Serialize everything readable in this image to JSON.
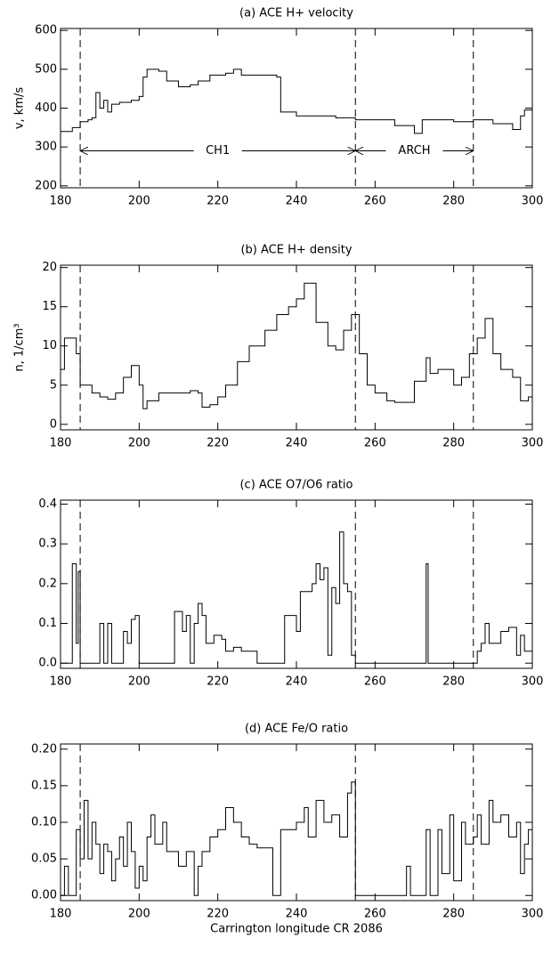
{
  "chart_data": [
    {
      "type": "line",
      "step": true,
      "title": "(a)    ACE H+ velocity",
      "y_label": "v, km/s",
      "xlim": [
        180,
        300
      ],
      "xticks": [
        180,
        200,
        220,
        240,
        260,
        280,
        300
      ],
      "ylim": [
        195,
        605
      ],
      "yticks": [
        200,
        300,
        400,
        500,
        600
      ],
      "dashed_lines": [
        185,
        255,
        285
      ],
      "annotations": [
        {
          "label": "CH1",
          "x_start": 185,
          "x_end": 255,
          "y": 290
        },
        {
          "label": "ARCH",
          "x_start": 255,
          "x_end": 285,
          "y": 290
        }
      ],
      "x": [
        180,
        183,
        185,
        187,
        188,
        189,
        190,
        191,
        192,
        193,
        195,
        198,
        200,
        201,
        202,
        205,
        207,
        210,
        213,
        215,
        218,
        222,
        224,
        226,
        235,
        236,
        240,
        250,
        255,
        260,
        265,
        270,
        272,
        275,
        280,
        285,
        290,
        295,
        297,
        298,
        300
      ],
      "series": [
        {
          "name": "H+ velocity",
          "color": "#000000",
          "values": [
            340,
            350,
            365,
            370,
            375,
            440,
            400,
            420,
            390,
            410,
            415,
            420,
            430,
            480,
            500,
            495,
            470,
            455,
            460,
            470,
            485,
            490,
            500,
            485,
            480,
            390,
            380,
            375,
            370,
            370,
            355,
            335,
            370,
            370,
            365,
            370,
            360,
            345,
            380,
            395,
            400
          ]
        }
      ]
    },
    {
      "type": "line",
      "step": true,
      "title": "(b)    ACE H+ density",
      "y_label": "n, 1/cm³",
      "xlim": [
        180,
        300
      ],
      "xticks": [
        180,
        200,
        220,
        240,
        260,
        280,
        300
      ],
      "ylim": [
        -0.7,
        20.3
      ],
      "yticks": [
        0,
        5,
        10,
        15,
        20
      ],
      "dashed_lines": [
        185,
        255,
        285
      ],
      "x": [
        180,
        181,
        183,
        184,
        185,
        188,
        190,
        192,
        194,
        196,
        198,
        200,
        201,
        202,
        205,
        210,
        213,
        215,
        216,
        218,
        220,
        222,
        225,
        228,
        232,
        235,
        238,
        240,
        242,
        245,
        248,
        250,
        252,
        254,
        256,
        258,
        260,
        263,
        265,
        270,
        273,
        274,
        276,
        280,
        282,
        284,
        286,
        288,
        290,
        292,
        295,
        297,
        299,
        300
      ],
      "series": [
        {
          "name": "H+ density",
          "color": "#000000",
          "values": [
            7,
            11,
            11,
            9,
            5,
            4,
            3.5,
            3.2,
            4,
            6,
            7.5,
            5,
            2,
            3,
            4,
            4,
            4.3,
            4,
            2.2,
            2.5,
            3.5,
            5,
            8,
            10,
            12,
            14,
            15,
            16,
            18,
            13,
            10,
            9.5,
            12,
            14,
            9,
            5,
            4,
            3,
            2.8,
            5.5,
            8.5,
            6.5,
            7,
            5,
            6,
            9,
            11,
            13.5,
            9,
            7,
            6,
            3,
            3.5,
            3.5
          ]
        }
      ]
    },
    {
      "type": "line",
      "step": true,
      "title": "(c)    ACE O7/O6 ratio",
      "xlim": [
        180,
        300
      ],
      "xticks": [
        180,
        200,
        220,
        240,
        260,
        280,
        300
      ],
      "ylim": [
        -0.013,
        0.41
      ],
      "yticks": [
        {
          "value": 0,
          "label": "0.0"
        },
        0.1,
        0.2,
        0.3,
        0.4
      ],
      "dashed_lines": [
        185,
        255,
        285
      ],
      "x": [
        180,
        183,
        184,
        184.5,
        185,
        190,
        191,
        192,
        193,
        196,
        197,
        198,
        199,
        200,
        209,
        211,
        212,
        213,
        214,
        215,
        216,
        217,
        219,
        221,
        222,
        224,
        226,
        230,
        237,
        240,
        241,
        244,
        245,
        246,
        247,
        248,
        249,
        250,
        251,
        252,
        253,
        254,
        255,
        273,
        273.5,
        286,
        287,
        288,
        289,
        292,
        294,
        296,
        297,
        298,
        300
      ],
      "series": [
        {
          "name": "O7/O6 ratio",
          "color": "#000000",
          "values": [
            0,
            0.25,
            0.05,
            0.23,
            0,
            0.1,
            0,
            0.1,
            0,
            0.08,
            0.05,
            0.11,
            0.12,
            0,
            0.13,
            0.08,
            0.12,
            0,
            0.1,
            0.15,
            0.12,
            0.05,
            0.07,
            0.06,
            0.03,
            0.04,
            0.03,
            0,
            0.12,
            0.08,
            0.18,
            0.2,
            0.25,
            0.21,
            0.24,
            0.02,
            0.19,
            0.15,
            0.33,
            0.2,
            0.18,
            0.02,
            0,
            0.25,
            0,
            0.03,
            0.05,
            0.1,
            0.05,
            0.08,
            0.09,
            0.02,
            0.07,
            0.03,
            0.03
          ]
        }
      ]
    },
    {
      "type": "line",
      "step": true,
      "title": "(d)    ACE Fe/O ratio",
      "x_label": "Carrington longitude  CR 2086",
      "xlim": [
        180,
        300
      ],
      "xticks": [
        180,
        200,
        220,
        240,
        260,
        280,
        300
      ],
      "ylim": [
        -0.007,
        0.207
      ],
      "yticks": [
        {
          "value": 0,
          "label": "0.00"
        },
        0.05,
        {
          "value": 0.1,
          "label": "0.10"
        },
        0.15,
        {
          "value": 0.2,
          "label": "0.20"
        }
      ],
      "dashed_lines": [
        185,
        255,
        285
      ],
      "x": [
        180,
        181,
        182,
        184,
        185,
        186,
        187,
        188,
        189,
        190,
        191,
        192,
        193,
        194,
        195,
        196,
        197,
        198,
        199,
        200,
        201,
        202,
        203,
        204,
        206,
        207,
        210,
        212,
        214,
        215,
        216,
        218,
        220,
        222,
        224,
        226,
        228,
        230,
        234,
        236,
        240,
        242,
        243,
        245,
        247,
        249,
        251,
        253,
        254,
        255,
        268,
        269,
        273,
        274,
        276,
        277,
        279,
        280,
        282,
        283,
        285,
        286,
        287,
        289,
        290,
        292,
        294,
        296,
        297,
        298,
        299,
        300
      ],
      "series": [
        {
          "name": "Fe/O ratio",
          "color": "#000000",
          "values": [
            0,
            0.04,
            0,
            0.09,
            0.05,
            0.13,
            0.05,
            0.1,
            0.07,
            0.03,
            0.07,
            0.06,
            0.02,
            0.05,
            0.08,
            0.04,
            0.1,
            0.06,
            0.01,
            0.04,
            0.02,
            0.08,
            0.11,
            0.07,
            0.1,
            0.06,
            0.04,
            0.06,
            0,
            0.04,
            0.06,
            0.08,
            0.09,
            0.12,
            0.1,
            0.08,
            0.07,
            0.065,
            0,
            0.09,
            0.1,
            0.12,
            0.08,
            0.13,
            0.1,
            0.11,
            0.08,
            0.14,
            0.155,
            0,
            0.04,
            0,
            0.09,
            0,
            0.09,
            0.03,
            0.11,
            0.02,
            0.1,
            0.07,
            0.08,
            0.11,
            0.07,
            0.13,
            0.1,
            0.11,
            0.08,
            0.1,
            0.03,
            0.07,
            0.09,
            0.07
          ]
        }
      ]
    }
  ]
}
